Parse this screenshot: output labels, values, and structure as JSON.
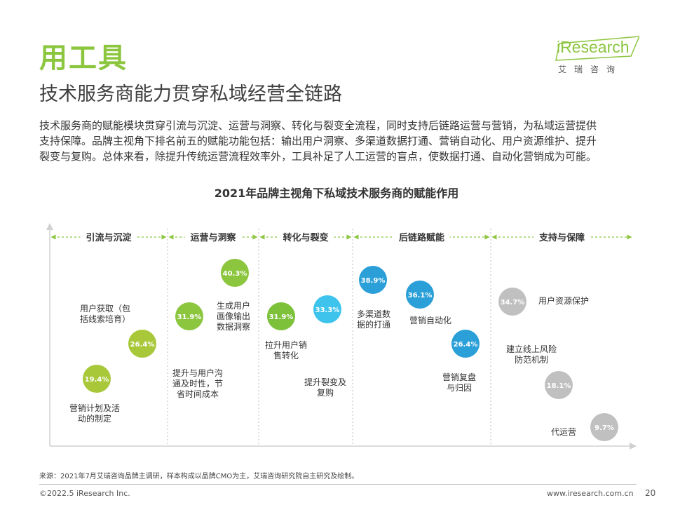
{
  "header": {
    "tool_label": "用工具",
    "subtitle": "技术服务商能力贯穿私域经营全链路",
    "logo_word": "iResearch",
    "logo_sub": "艾瑞咨询"
  },
  "description": [
    "技术服务商的赋能模块贯穿引流与沉淀、运营与洞察、转化与裂变全流程，同时支持后链路运营与营销，为私域运营提供",
    "支持保障。品牌主视角下排名前五的赋能功能包括：输出用户洞察、多渠道数据打通、营销自动化、用户资源维护、提升",
    "裂变与复购。总体来看，除提升传统运营流程效率外，工具补足了人工运营的盲点，使数据打通、自动化营销成为可能。"
  ],
  "chart_data": {
    "type": "scatter",
    "title": "2021年品牌主视角下私域技术服务商的赋能作用",
    "categories": [
      "引流与沉淀",
      "运营与洞察",
      "转化与裂变",
      "后链路赋能",
      "支持与保障"
    ],
    "category_colors": {
      "引流与沉淀": "#a8c83a",
      "运营与洞察": "#8cc63f",
      "转化与裂变": "#4cc4ea",
      "后链路赋能": "#2a9fd8",
      "支持与保障": "#b8b8b8"
    },
    "points": [
      {
        "category": "引流与沉淀",
        "label": "营销计划及活动的制定",
        "value": "19.4%",
        "color": "#a8c83a"
      },
      {
        "category": "引流与沉淀",
        "label": "用户获取（包括线索培育）",
        "value": "26.4%",
        "color": "#a8c83a"
      },
      {
        "category": "运营与洞察",
        "label": "提升与用户沟通及时性，节省时间成本",
        "value": "31.9%",
        "color": "#8cc63f"
      },
      {
        "category": "运营与洞察",
        "label": "生成用户画像输出数据洞察",
        "value": "40.3%",
        "color": "#8cc63f"
      },
      {
        "category": "转化与裂变",
        "label": "拉升用户销售转化",
        "value": "31.9%",
        "color": "#7dc03a"
      },
      {
        "category": "转化与裂变",
        "label": "提升裂变及复购",
        "value": "33.3%",
        "color": "#3dc3ec"
      },
      {
        "category": "后链路赋能",
        "label": "多渠道数据的打通",
        "value": "38.9%",
        "color": "#2a9fd8"
      },
      {
        "category": "后链路赋能",
        "label": "营销自动化",
        "value": "36.1%",
        "color": "#2a9fd8"
      },
      {
        "category": "后链路赋能",
        "label": "营销复盘与归因",
        "value": "26.4%",
        "color": "#2a9fd8"
      },
      {
        "category": "支持与保障",
        "label": "用户资源保护",
        "value": "34.7%",
        "color": "#c0c0c0"
      },
      {
        "category": "支持与保障",
        "label": "建立线上风险防范机制",
        "value": "18.1%",
        "color": "#c0c0c0"
      },
      {
        "category": "支持与保障",
        "label": "代运营",
        "value": "9.7%",
        "color": "#c0c0c0"
      }
    ]
  },
  "footer": {
    "source": "来源：2021年7月艾瑞咨询品牌主调研，样本构成以品牌CMO为主，艾瑞咨询研究院自主研究及绘制。",
    "copyright": "©2022.5 iResearch Inc.",
    "website": "www.iresearch.com.cn",
    "page": "20"
  }
}
